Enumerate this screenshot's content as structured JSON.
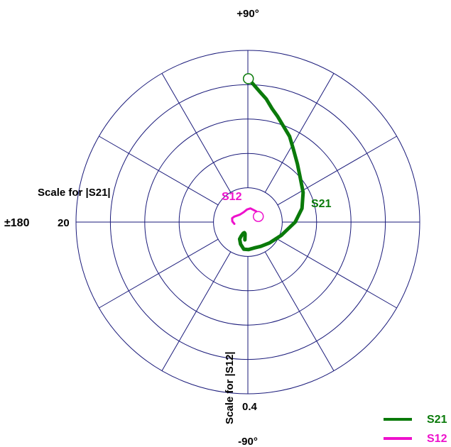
{
  "chart_data": {
    "type": "polar",
    "angle_labels": {
      "top": "+90°",
      "left": "±180",
      "bottom": "-90°"
    },
    "grid": {
      "rings": 5,
      "radial_lines_every_deg": 30,
      "color": "#1a1a7a"
    },
    "s21_axis": {
      "label": "Scale for |S21|",
      "max_tick": "20"
    },
    "s12_axis": {
      "label": "Scale for |S12|",
      "max_tick": "0.4"
    },
    "series": [
      {
        "name": "S21",
        "color": "#0a7a0a",
        "label": "S21",
        "start_marker": "circle",
        "points_magnitude_angle_deg": [
          [
            16.7,
            89.8
          ],
          [
            16.0,
            87.5
          ],
          [
            15.2,
            84.6
          ],
          [
            14.5,
            81.5
          ],
          [
            13.5,
            77.9
          ],
          [
            12.8,
            74.4
          ],
          [
            11.9,
            69.6
          ],
          [
            11.1,
            64.1
          ],
          [
            10.0,
            58.0
          ],
          [
            8.9,
            49.7
          ],
          [
            8.0,
            40.4
          ],
          [
            7.3,
            28.2
          ],
          [
            6.5,
            14.2
          ],
          [
            5.5,
            0.0
          ],
          [
            4.2,
            -21.4
          ],
          [
            3.5,
            -43.8
          ],
          [
            3.2,
            -62.0
          ],
          [
            3.1,
            -77.1
          ],
          [
            3.2,
            -88.4
          ],
          [
            3.2,
            -98.5
          ],
          [
            2.7,
            -108.4
          ],
          [
            2.2,
            -115.9
          ],
          [
            1.8,
            -115.5
          ],
          [
            1.4,
            -112.5
          ],
          [
            1.3,
            -108.3
          ],
          [
            1.4,
            -103.8
          ],
          [
            1.6,
            -101.8
          ],
          [
            2.1,
            -99.4
          ]
        ]
      },
      {
        "name": "S12",
        "color": "#ee11cc",
        "label": "S12",
        "start_marker": "circle",
        "points_magnitude_angle_deg": [
          [
            0.0276,
            28.4
          ],
          [
            0.0317,
            52.4
          ],
          [
            0.0325,
            79.4
          ],
          [
            0.0293,
            94.3
          ],
          [
            0.025,
            112.5
          ],
          [
            0.0256,
            137.9
          ],
          [
            0.0342,
            158.2
          ],
          [
            0.0377,
            166.4
          ],
          [
            0.0363,
            177.5
          ],
          [
            0.0317,
            187.6
          ]
        ]
      }
    ],
    "legend": {
      "position": "bottom-right",
      "items": [
        {
          "label": "S21",
          "color": "#0a7a0a"
        },
        {
          "label": "S12",
          "color": "#ee11cc"
        }
      ]
    }
  }
}
